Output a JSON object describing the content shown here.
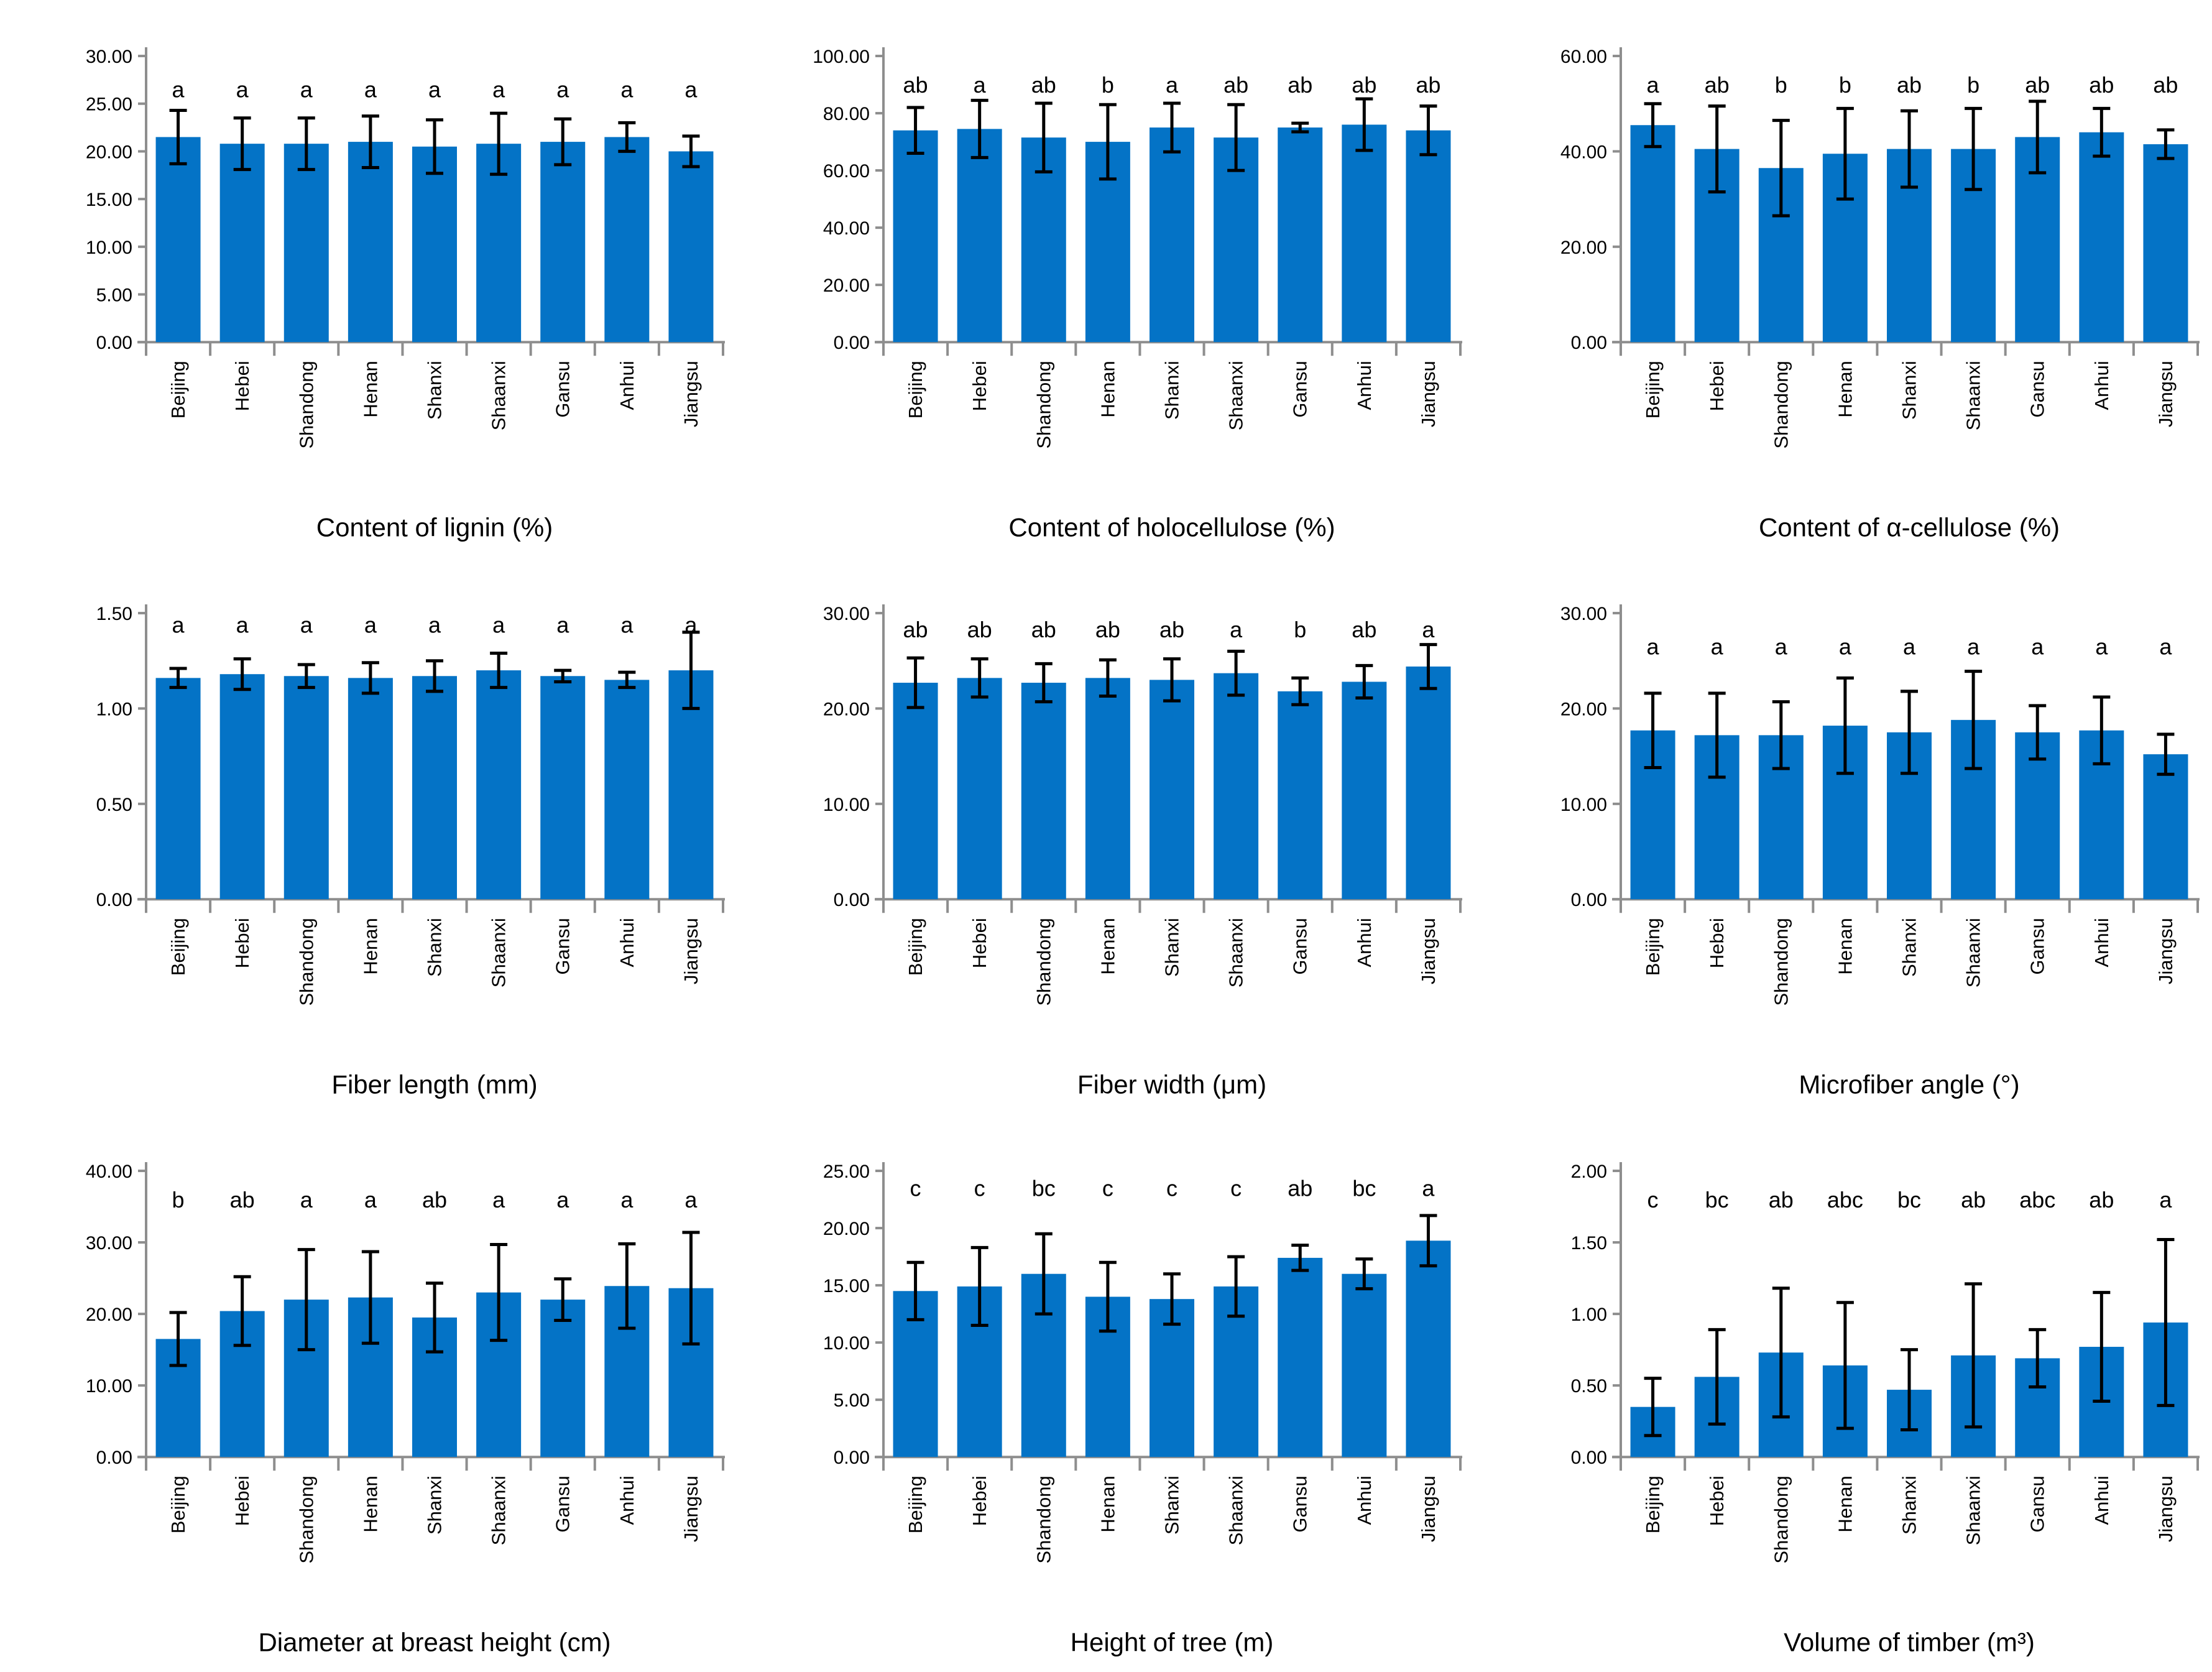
{
  "figure": {
    "background": "#FFFFFF",
    "bar_color": "#0473C6",
    "error_bar_color": "#000000",
    "axis_color": "#8E8E8E",
    "text_color": "#000000",
    "tick_decimals": 2,
    "layout_hint": "3x3 grid of bar charts with error bars and significance letters, rotated category labels, title below each chart"
  },
  "chart_data": [
    {
      "type": "bar",
      "title": "Content of lignin (%)",
      "categories": [
        "Beijing",
        "Hebei",
        "Shandong",
        "Henan",
        "Shanxi",
        "Shaanxi",
        "Gansu",
        "Anhui",
        "Jiangsu"
      ],
      "values": [
        21.5,
        20.8,
        20.8,
        21.0,
        20.5,
        20.8,
        21.0,
        21.5,
        20.0
      ],
      "errors": [
        2.8,
        2.7,
        2.7,
        2.7,
        2.8,
        3.2,
        2.4,
        1.5,
        1.6
      ],
      "sig_letters": [
        "a",
        "a",
        "a",
        "a",
        "a",
        "a",
        "a",
        "a",
        "a"
      ],
      "ylim": [
        0,
        30
      ],
      "ytick_step": 5,
      "letters_value": 26.5,
      "xlabel": "",
      "ylabel": "",
      "grid": false,
      "legend": false
    },
    {
      "type": "bar",
      "title": "Content of holocellulose (%)",
      "categories": [
        "Beijing",
        "Hebei",
        "Shandong",
        "Henan",
        "Shanxi",
        "Shaanxi",
        "Gansu",
        "Anhui",
        "Jiangsu"
      ],
      "values": [
        74.0,
        74.5,
        71.5,
        70.0,
        75.0,
        71.5,
        75.0,
        76.0,
        74.0
      ],
      "errors": [
        8.0,
        10.0,
        12.0,
        13.0,
        8.5,
        11.5,
        1.5,
        9.0,
        8.5
      ],
      "sig_letters": [
        "ab",
        "a",
        "ab",
        "b",
        "a",
        "ab",
        "ab",
        "ab",
        "ab"
      ],
      "ylim": [
        0,
        100
      ],
      "ytick_step": 20,
      "letters_value": 90,
      "xlabel": "",
      "ylabel": "",
      "grid": false,
      "legend": false
    },
    {
      "type": "bar",
      "title": "Content of α-cellulose (%)",
      "categories": [
        "Beijing",
        "Hebei",
        "Shandong",
        "Henan",
        "Shanxi",
        "Shaanxi",
        "Gansu",
        "Anhui",
        "Jiangsu"
      ],
      "values": [
        45.5,
        40.5,
        36.5,
        39.5,
        40.5,
        40.5,
        43.0,
        44.0,
        41.5
      ],
      "errors": [
        4.5,
        9.0,
        10.0,
        9.5,
        8.0,
        8.5,
        7.5,
        5.0,
        3.0
      ],
      "sig_letters": [
        "a",
        "ab",
        "b",
        "b",
        "ab",
        "b",
        "ab",
        "ab",
        "ab"
      ],
      "ylim": [
        0,
        60
      ],
      "ytick_step": 20,
      "letters_value": 54,
      "xlabel": "",
      "ylabel": "",
      "grid": false,
      "legend": false
    },
    {
      "type": "bar",
      "title": "Fiber length (mm)",
      "categories": [
        "Beijing",
        "Hebei",
        "Shandong",
        "Henan",
        "Shanxi",
        "Shaanxi",
        "Gansu",
        "Anhui",
        "Jiangsu"
      ],
      "values": [
        1.16,
        1.18,
        1.17,
        1.16,
        1.17,
        1.2,
        1.17,
        1.15,
        1.2
      ],
      "errors": [
        0.05,
        0.08,
        0.06,
        0.08,
        0.08,
        0.09,
        0.03,
        0.04,
        0.2
      ],
      "sig_letters": [
        "a",
        "a",
        "a",
        "a",
        "a",
        "a",
        "a",
        "a",
        "a"
      ],
      "ylim": [
        0,
        1.5
      ],
      "ytick_step": 0.5,
      "letters_value": 1.44,
      "xlabel": "",
      "ylabel": "",
      "grid": false,
      "legend": false
    },
    {
      "type": "bar",
      "title": "Fiber width (μm)",
      "categories": [
        "Beijing",
        "Hebei",
        "Shandong",
        "Henan",
        "Shanxi",
        "Shaanxi",
        "Gansu",
        "Anhui",
        "Jiangsu"
      ],
      "values": [
        22.7,
        23.2,
        22.7,
        23.2,
        23.0,
        23.7,
        21.8,
        22.8,
        24.4
      ],
      "errors": [
        2.6,
        2.0,
        2.0,
        1.9,
        2.2,
        2.3,
        1.4,
        1.7,
        2.3
      ],
      "sig_letters": [
        "ab",
        "ab",
        "ab",
        "ab",
        "ab",
        "a",
        "b",
        "ab",
        "a"
      ],
      "ylim": [
        0,
        30
      ],
      "ytick_step": 10,
      "letters_value": 28.3,
      "xlabel": "",
      "ylabel": "",
      "grid": false,
      "legend": false
    },
    {
      "type": "bar",
      "title": "Microfiber angle (°)",
      "categories": [
        "Beijing",
        "Hebei",
        "Shandong",
        "Henan",
        "Shanxi",
        "Shaanxi",
        "Gansu",
        "Anhui",
        "Jiangsu"
      ],
      "values": [
        17.7,
        17.2,
        17.2,
        18.2,
        17.5,
        18.8,
        17.5,
        17.7,
        15.2
      ],
      "errors": [
        3.9,
        4.4,
        3.5,
        5.0,
        4.3,
        5.1,
        2.8,
        3.5,
        2.1
      ],
      "sig_letters": [
        "a",
        "a",
        "a",
        "a",
        "a",
        "a",
        "a",
        "a",
        "a"
      ],
      "ylim": [
        0,
        30
      ],
      "ytick_step": 10,
      "letters_value": 26.5,
      "xlabel": "",
      "ylabel": "",
      "grid": false,
      "legend": false
    },
    {
      "type": "bar",
      "title": "Diameter at breast height (cm)",
      "categories": [
        "Beijing",
        "Hebei",
        "Shandong",
        "Henan",
        "Shanxi",
        "Shaanxi",
        "Gansu",
        "Anhui",
        "Jiangsu"
      ],
      "values": [
        16.5,
        20.4,
        22.0,
        22.3,
        19.5,
        23.0,
        22.0,
        23.9,
        23.6
      ],
      "errors": [
        3.7,
        4.8,
        7.0,
        6.4,
        4.8,
        6.7,
        2.9,
        5.9,
        7.8
      ],
      "sig_letters": [
        "b",
        "ab",
        "a",
        "a",
        "ab",
        "a",
        "a",
        "a",
        "a"
      ],
      "ylim": [
        0,
        40
      ],
      "ytick_step": 10,
      "letters_value": 36,
      "xlabel": "",
      "ylabel": "",
      "grid": false,
      "legend": false
    },
    {
      "type": "bar",
      "title": "Height of tree (m)",
      "categories": [
        "Beijing",
        "Hebei",
        "Shandong",
        "Henan",
        "Shanxi",
        "Shaanxi",
        "Gansu",
        "Anhui",
        "Jiangsu"
      ],
      "values": [
        14.5,
        14.9,
        16.0,
        14.0,
        13.8,
        14.9,
        17.4,
        16.0,
        18.9
      ],
      "errors": [
        2.5,
        3.4,
        3.5,
        3.0,
        2.2,
        2.6,
        1.1,
        1.3,
        2.2
      ],
      "sig_letters": [
        "c",
        "c",
        "bc",
        "c",
        "c",
        "c",
        "ab",
        "bc",
        "a"
      ],
      "ylim": [
        0,
        25
      ],
      "ytick_step": 5,
      "letters_value": 23.5,
      "xlabel": "",
      "ylabel": "",
      "grid": false,
      "legend": false
    },
    {
      "type": "bar",
      "title": "Volume of timber (m³)",
      "categories": [
        "Beijing",
        "Hebei",
        "Shandong",
        "Henan",
        "Shanxi",
        "Shaanxi",
        "Gansu",
        "Anhui",
        "Jiangsu"
      ],
      "values": [
        0.35,
        0.56,
        0.73,
        0.64,
        0.47,
        0.71,
        0.69,
        0.77,
        0.94
      ],
      "errors": [
        0.2,
        0.33,
        0.45,
        0.44,
        0.28,
        0.5,
        0.2,
        0.38,
        0.58
      ],
      "sig_letters": [
        "c",
        "bc",
        "ab",
        "abc",
        "bc",
        "ab",
        "abc",
        "ab",
        "a"
      ],
      "ylim": [
        0,
        2
      ],
      "ytick_step": 0.5,
      "letters_value": 1.8,
      "xlabel": "",
      "ylabel": "",
      "grid": false,
      "legend": false
    }
  ]
}
